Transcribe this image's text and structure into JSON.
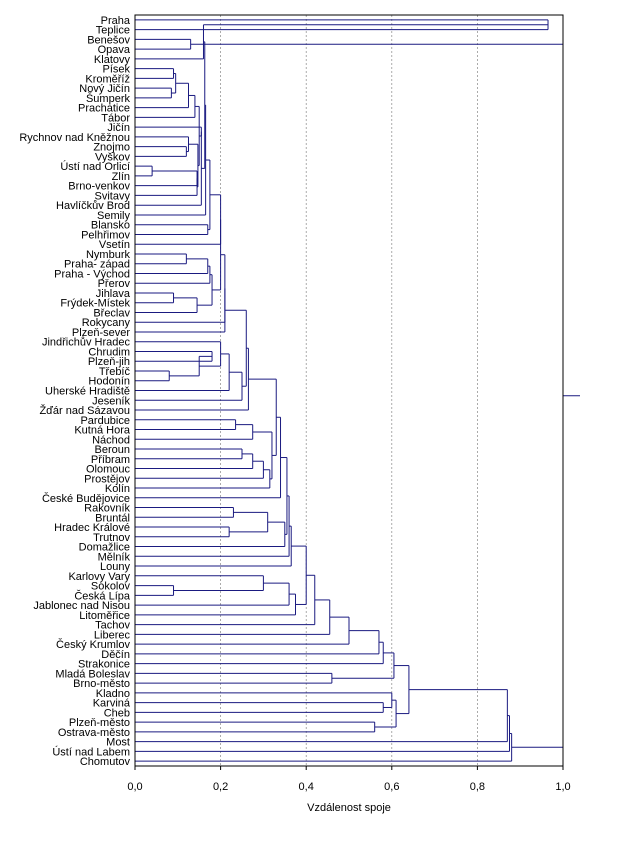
{
  "chart_data": {
    "type": "dendrogram",
    "orientation": "horizontal",
    "xlabel": "Vzdálenost spoje",
    "xlim": [
      0,
      1.0
    ],
    "x_ticks": [
      "0,0",
      "0,2",
      "0,4",
      "0,6",
      "0,8",
      "1,0"
    ],
    "x_tick_values": [
      0,
      0.2,
      0.4,
      0.6,
      0.8,
      1.0
    ],
    "grid": "vertical dashed",
    "line_color": "#1a1a80",
    "leaves": [
      "Praha",
      "Teplice",
      "Benešov",
      "Opava",
      "Klatovy",
      "Písek",
      "Kroměříž",
      "Nový Jičín",
      "Šumperk",
      "Prachatice",
      "Tábor",
      "Jičín",
      "Rychnov nad Kněžnou",
      "Znojmo",
      "Vyškov",
      "Ústí nad Orlicí",
      "Zlín",
      "Brno-venkov",
      "Svitavy",
      "Havlíčkův Brod",
      "Semily",
      "Blansko",
      "Pelhřimov",
      "Vsetín",
      "Nymburk",
      "Praha- západ",
      "Praha - Východ",
      "Přerov",
      "Jihlava",
      "Frýdek-Místek",
      "Břeclav",
      "Rokycany",
      "Plzeň-sever",
      "Jindřichův Hradec",
      "Chrudim",
      "Plzeň-jih",
      "Třebíč",
      "Hodonín",
      "Uherské Hradiště",
      "Jeseník",
      "Žďár nad Sázavou",
      "Pardubice",
      "Kutná Hora",
      "Náchod",
      "Beroun",
      "Příbram",
      "Olomouc",
      "Prostějov",
      "Kolín",
      "České Budějovice",
      "Rakovník",
      "Bruntál",
      "Hradec Králové",
      "Trutnov",
      "Domažlice",
      "Mělník",
      "Louny",
      "Karlovy Vary",
      "Sokolov",
      "Česká Lípa",
      "Jablonec nad Nisou",
      "Litoměřice",
      "Tachov",
      "Liberec",
      "Český Krumlov",
      "Děčín",
      "Strakonice",
      "Mladá Boleslav",
      "Brno-město",
      "Kladno",
      "Karviná",
      "Cheb",
      "Plzeň-město",
      "Ostrava-město",
      "Most",
      "Ústí nad Labem",
      "Chomutov"
    ],
    "merges": [
      [
        0,
        1,
        0.965
      ],
      [
        2,
        3,
        0.13
      ],
      [
        5,
        6,
        0.09
      ],
      [
        7,
        8,
        0.085
      ],
      [
        -3,
        -4,
        0.095
      ],
      [
        -5,
        9,
        0.125
      ],
      [
        -6,
        10,
        0.14
      ],
      [
        13,
        14,
        0.12
      ],
      [
        12,
        -8,
        0.125
      ],
      [
        15,
        16,
        0.04
      ],
      [
        -10,
        17,
        0.145
      ],
      [
        -11,
        18,
        0.145
      ],
      [
        -9,
        -12,
        0.147
      ],
      [
        -7,
        -13,
        0.15
      ],
      [
        -14,
        11,
        0.155
      ],
      [
        -15,
        19,
        0.155
      ],
      [
        -1,
        4,
        0.16
      ],
      [
        -16,
        -17,
        0.163
      ],
      [
        -18,
        20,
        0.165
      ],
      [
        21,
        22,
        0.17
      ],
      [
        -19,
        -20,
        0.175
      ],
      [
        -21,
        23,
        0.2
      ],
      [
        24,
        25,
        0.12
      ],
      [
        -23,
        26,
        0.17
      ],
      [
        -24,
        27,
        0.175
      ],
      [
        28,
        29,
        0.09
      ],
      [
        -26,
        30,
        0.145
      ],
      [
        -25,
        -27,
        0.18
      ],
      [
        -22,
        -28,
        0.2
      ],
      [
        -29,
        31,
        0.21
      ],
      [
        -30,
        32,
        0.21
      ],
      [
        34,
        35,
        0.18
      ],
      [
        36,
        37,
        0.08
      ],
      [
        -32,
        -33,
        0.15
      ],
      [
        33,
        -34,
        0.2
      ],
      [
        -35,
        38,
        0.22
      ],
      [
        -36,
        39,
        0.25
      ],
      [
        -31,
        -37,
        0.26
      ],
      [
        -38,
        40,
        0.265
      ],
      [
        41,
        42,
        0.235
      ],
      [
        -40,
        43,
        0.275
      ],
      [
        44,
        45,
        0.25
      ],
      [
        -42,
        46,
        0.275
      ],
      [
        -43,
        47,
        0.3
      ],
      [
        -44,
        48,
        0.315
      ],
      [
        -41,
        -45,
        0.32
      ],
      [
        -39,
        -46,
        0.33
      ],
      [
        -47,
        49,
        0.34
      ],
      [
        50,
        51,
        0.23
      ],
      [
        52,
        53,
        0.22
      ],
      [
        -49,
        -50,
        0.31
      ],
      [
        -51,
        54,
        0.35
      ],
      [
        -48,
        -52,
        0.355
      ],
      [
        -53,
        55,
        0.36
      ],
      [
        -54,
        56,
        0.365
      ],
      [
        58,
        59,
        0.09
      ],
      [
        57,
        -56,
        0.3
      ],
      [
        -57,
        60,
        0.36
      ],
      [
        -58,
        61,
        0.375
      ],
      [
        -55,
        -59,
        0.4
      ],
      [
        -60,
        62,
        0.42
      ],
      [
        -61,
        63,
        0.455
      ],
      [
        -62,
        64,
        0.5
      ],
      [
        -63,
        65,
        0.57
      ],
      [
        -64,
        66,
        0.58
      ],
      [
        67,
        68,
        0.46
      ],
      [
        70,
        71,
        0.58
      ],
      [
        69,
        -67,
        0.6
      ],
      [
        72,
        73,
        0.56
      ],
      [
        -68,
        -69,
        0.61
      ],
      [
        -65,
        -66,
        0.605
      ],
      [
        -71,
        -70,
        0.64
      ],
      [
        -72,
        74,
        0.87
      ],
      [
        -73,
        75,
        0.875
      ],
      [
        -74,
        76,
        0.88
      ],
      [
        -2,
        -75,
        1.0
      ]
    ]
  }
}
